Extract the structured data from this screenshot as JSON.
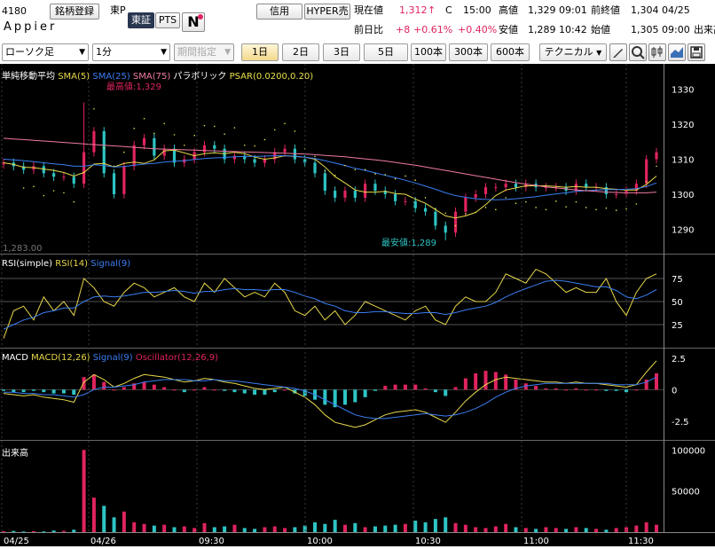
{
  "header": {
    "code": "4180",
    "company": "Appier",
    "register_btn": "銘柄登録",
    "market": "東P",
    "market_btn1": "東証",
    "market_btn2": "PTS",
    "credit_btn": "信用",
    "hyper_btn": "HYPER売",
    "current_label": "現在値",
    "current_value": "1,312",
    "current_arrow": "↑",
    "current_flag": "C",
    "current_time": "15:00",
    "high_label": "高値",
    "high_value": "1,329 09:01",
    "prev_close_label": "前終値",
    "prev_close_value": "1,304 04/25",
    "change_label": "前日比",
    "change_value": "+8",
    "change_pct": "+0.61%",
    "change_pct2": "+0.40%",
    "low_label": "安値",
    "low_value": "1,289 10:42",
    "open_label": "始値",
    "open_value": "1,305 09:00",
    "volume_label": "出来高"
  },
  "toolbar": {
    "chart_type": "ローソク足",
    "interval": "1分",
    "period": "期間指定",
    "ranges": [
      "1日",
      "2日",
      "3日",
      "5日",
      "100本",
      "300本",
      "600本"
    ],
    "active_range": "1日",
    "technical": "テクニカル"
  },
  "colors": {
    "up": "#e0245e",
    "down": "#2ec4c4",
    "sma5": "#e8d84a",
    "sma25": "#3a7ef2",
    "sma75": "#f07ba0",
    "psar": "#e6e04a",
    "signal": "#3a7ef2"
  },
  "panels": {
    "price": {
      "legend": [
        "単純移動平均",
        "SMA(5)",
        "SMA(25)",
        "SMA(75)",
        "パラボリック",
        "PSAR(0.0200,0.20)"
      ],
      "high_note": "最高値:1,329",
      "low_note": "最安値:1,289",
      "prev_close_note": "1,283.00"
    },
    "rsi": {
      "legend": [
        "RSI(simple)",
        "RSI(14)",
        "Signal(9)"
      ]
    },
    "macd": {
      "legend": [
        "MACD",
        "MACD(12,26)",
        "Signal(9)",
        "Oscillator(12,26,9)"
      ]
    },
    "volume": {
      "legend": [
        "出来高"
      ]
    }
  },
  "chart_data": [
    {
      "type": "candlestick",
      "title": "単純移動平均 / パラボリック",
      "ylim": [
        1283,
        1336
      ],
      "yticks": [
        1290,
        1300,
        1310,
        1320,
        1330
      ],
      "x_ticks": [
        "04/25",
        "04/26",
        "09:30",
        "10:00",
        "10:30",
        "11:00",
        "11:30"
      ],
      "series": [
        {
          "name": "Close",
          "values": [
            1309,
            1308,
            1307,
            1308,
            1306,
            1305,
            1305,
            1303,
            1312,
            1318,
            1306,
            1300,
            1308,
            1314,
            1316,
            1311,
            1313,
            1309,
            1310,
            1312,
            1314,
            1313,
            1310,
            1311,
            1310,
            1309,
            1310,
            1312,
            1313,
            1310,
            1309,
            1306,
            1301,
            1299,
            1301,
            1299,
            1303,
            1301,
            1300,
            1298,
            1298,
            1296,
            1295,
            1291,
            1289,
            1295,
            1299,
            1300,
            1302,
            1302,
            1303,
            1302,
            1303,
            1302,
            1302,
            1302,
            1301,
            1303,
            1302,
            1302,
            1300,
            1300,
            1301,
            1303,
            1310,
            1312
          ]
        },
        {
          "name": "SMA(5)",
          "values": [
            1309,
            1308.5,
            1307.7,
            1307.6,
            1307.2,
            1306.8,
            1306.2,
            1305.2,
            1306.2,
            1308.6,
            1308.8,
            1307.8,
            1308.8,
            1309.2,
            1308.8,
            1309.8,
            1312.4,
            1312.6,
            1311.8,
            1311,
            1311.6,
            1311.8,
            1311.6,
            1312,
            1311.6,
            1310.6,
            1310,
            1310.4,
            1311,
            1310.8,
            1310.6,
            1310,
            1307.8,
            1305,
            1303.2,
            1301.2,
            1300.6,
            1300.6,
            1300.8,
            1300.2,
            1300,
            1298.6,
            1297.4,
            1295.6,
            1293.8,
            1293.2,
            1293.8,
            1294.8,
            1297,
            1299.6,
            1301.2,
            1301.8,
            1302.4,
            1302.4,
            1302.4,
            1302.2,
            1302,
            1302.2,
            1302,
            1302,
            1301.6,
            1301.4,
            1301.2,
            1301.2,
            1302.8,
            1305.2
          ]
        },
        {
          "name": "SMA(25)",
          "values": [
            1310,
            1309.8,
            1309.6,
            1309.3,
            1309,
            1308.7,
            1308.4,
            1308,
            1308,
            1308.4,
            1308.2,
            1307.8,
            1307.9,
            1308.3,
            1308.6,
            1308.8,
            1309.2,
            1309.4,
            1309.6,
            1309.9,
            1310.2,
            1310.4,
            1310.5,
            1310.7,
            1310.8,
            1310.8,
            1310.9,
            1311,
            1311,
            1310.9,
            1310.6,
            1310.2,
            1309.6,
            1308.9,
            1308.2,
            1307.4,
            1306.8,
            1306.1,
            1305.4,
            1304.7,
            1304,
            1303.2,
            1302.3,
            1301.4,
            1300.4,
            1299.6,
            1299.1,
            1298.7,
            1298.5,
            1298.4,
            1298.5,
            1298.7,
            1299,
            1299.3,
            1299.7,
            1300.1,
            1300.4,
            1300.8,
            1301,
            1301.2,
            1301.3,
            1301.3,
            1301.4,
            1301.6,
            1302.2,
            1303.2
          ]
        },
        {
          "name": "SMA(75)",
          "values": [
            1316,
            1315.8,
            1315.6,
            1315.4,
            1315.2,
            1315,
            1314.8,
            1314.6,
            1314.4,
            1314.2,
            1314,
            1313.8,
            1313.6,
            1313.4,
            1313.2,
            1313,
            1312.9,
            1312.8,
            1312.7,
            1312.6,
            1312.5,
            1312.4,
            1312.3,
            1312.2,
            1312.1,
            1312,
            1311.9,
            1311.8,
            1311.7,
            1311.6,
            1311.5,
            1311.3,
            1311.1,
            1310.9,
            1310.7,
            1310.4,
            1310.1,
            1309.8,
            1309.5,
            1309.1,
            1308.7,
            1308.3,
            1307.8,
            1307.3,
            1306.8,
            1306.3,
            1305.8,
            1305.3,
            1304.8,
            1304.3,
            1303.8,
            1303.3,
            1302.9,
            1302.5,
            1302.1,
            1301.8,
            1301.5,
            1301.2,
            1301,
            1300.8,
            1300.6,
            1300.5,
            1300.4,
            1300.4,
            1300.4,
            1300.6
          ]
        }
      ]
    },
    {
      "type": "line",
      "title": "RSI(simple)",
      "ylim": [
        0,
        100
      ],
      "yticks": [
        25,
        50,
        75
      ],
      "series": [
        {
          "name": "RSI(14)",
          "values": [
            10,
            40,
            45,
            30,
            55,
            40,
            50,
            35,
            75,
            65,
            50,
            45,
            60,
            70,
            65,
            55,
            60,
            65,
            55,
            50,
            70,
            60,
            75,
            65,
            55,
            60,
            55,
            70,
            60,
            40,
            35,
            45,
            30,
            40,
            25,
            35,
            50,
            45,
            40,
            35,
            30,
            40,
            45,
            30,
            25,
            45,
            55,
            50,
            50,
            60,
            80,
            75,
            70,
            85,
            80,
            70,
            60,
            65,
            60,
            60,
            75,
            50,
            35,
            60,
            75,
            80
          ]
        },
        {
          "name": "Signal(9)",
          "values": [
            20,
            25,
            30,
            33,
            38,
            40,
            43,
            43,
            50,
            55,
            56,
            55,
            56,
            58,
            60,
            60,
            61,
            62,
            61,
            59,
            61,
            61,
            63,
            64,
            63,
            63,
            62,
            63,
            63,
            60,
            56,
            53,
            48,
            45,
            40,
            38,
            38,
            39,
            39,
            38,
            37,
            37,
            38,
            38,
            36,
            38,
            41,
            43,
            45,
            49,
            55,
            60,
            64,
            68,
            72,
            73,
            72,
            70,
            68,
            66,
            66,
            62,
            55,
            53,
            57,
            63
          ]
        }
      ]
    },
    {
      "type": "bar",
      "title": "MACD",
      "ylim": [
        -4,
        3.2
      ],
      "yticks": [
        -2.5,
        0,
        2.5
      ],
      "series": [
        {
          "name": "MACD(12,26)",
          "values": [
            -0.3,
            -0.4,
            -0.5,
            -0.4,
            -0.6,
            -0.7,
            -0.8,
            -1.0,
            0.6,
            1.2,
            0.8,
            0.2,
            0.5,
            0.9,
            1.2,
            1.1,
            1.0,
            0.8,
            0.6,
            0.7,
            0.9,
            0.8,
            0.6,
            0.5,
            0.3,
            0.1,
            0.0,
            0.1,
            0.2,
            -0.2,
            -0.6,
            -1.2,
            -2.0,
            -2.6,
            -2.8,
            -3.0,
            -2.8,
            -2.4,
            -2.0,
            -1.8,
            -1.7,
            -1.6,
            -1.8,
            -2.2,
            -2.6,
            -1.8,
            -0.9,
            -0.2,
            0.4,
            0.8,
            1.0,
            0.9,
            0.8,
            0.7,
            0.6,
            0.6,
            0.5,
            0.6,
            0.5,
            0.5,
            0.4,
            0.3,
            0.2,
            0.4,
            1.4,
            2.3
          ]
        },
        {
          "name": "Signal(9)",
          "values": [
            -0.2,
            -0.2,
            -0.3,
            -0.3,
            -0.4,
            -0.4,
            -0.5,
            -0.6,
            -0.4,
            0.0,
            0.2,
            0.2,
            0.3,
            0.4,
            0.6,
            0.7,
            0.8,
            0.8,
            0.8,
            0.7,
            0.7,
            0.8,
            0.7,
            0.7,
            0.6,
            0.5,
            0.4,
            0.3,
            0.2,
            0.1,
            -0.1,
            -0.4,
            -0.8,
            -1.2,
            -1.6,
            -2.0,
            -2.2,
            -2.3,
            -2.3,
            -2.2,
            -2.1,
            -2.0,
            -1.9,
            -2.0,
            -2.1,
            -2.0,
            -1.8,
            -1.5,
            -1.1,
            -0.6,
            -0.2,
            0.1,
            0.3,
            0.4,
            0.5,
            0.5,
            0.5,
            0.5,
            0.5,
            0.5,
            0.5,
            0.4,
            0.4,
            0.4,
            0.6,
            1.0
          ]
        },
        {
          "name": "Oscillator(12,26,9)",
          "values": [
            -0.1,
            -0.2,
            -0.2,
            -0.1,
            -0.2,
            -0.3,
            -0.3,
            -0.4,
            1.0,
            1.2,
            0.6,
            0.0,
            0.2,
            0.5,
            0.6,
            0.4,
            0.2,
            0.0,
            -0.2,
            0.0,
            0.2,
            0.0,
            -0.1,
            -0.2,
            -0.3,
            -0.4,
            -0.4,
            -0.2,
            0.0,
            -0.3,
            -0.5,
            -0.8,
            -1.2,
            -1.4,
            -1.2,
            -1.0,
            -0.6,
            -0.1,
            0.3,
            0.4,
            0.4,
            0.4,
            0.1,
            -0.2,
            -0.5,
            0.2,
            0.9,
            1.3,
            1.5,
            1.4,
            1.2,
            0.8,
            0.5,
            0.3,
            0.1,
            0.1,
            0.0,
            0.1,
            0.0,
            0.0,
            -0.1,
            -0.1,
            -0.2,
            0.0,
            0.8,
            1.3
          ]
        }
      ]
    },
    {
      "type": "bar",
      "title": "出来高",
      "ylim": [
        0,
        110000
      ],
      "yticks": [
        50000,
        100000
      ],
      "series": [
        {
          "name": "出来高",
          "values": [
            1000,
            1500,
            800,
            1200,
            900,
            2000,
            1500,
            3000,
            100000,
            42000,
            32000,
            18000,
            25000,
            12000,
            10000,
            8000,
            9000,
            6000,
            7000,
            5000,
            11000,
            6000,
            7000,
            9000,
            5000,
            4000,
            6000,
            7000,
            5000,
            6000,
            8000,
            12000,
            10000,
            15000,
            9000,
            11000,
            6000,
            7000,
            8000,
            9000,
            10000,
            14000,
            12000,
            16000,
            18000,
            11000,
            9000,
            6000,
            5000,
            7000,
            10000,
            6000,
            5000,
            4000,
            6000,
            5000,
            4000,
            6000,
            5000,
            4000,
            3000,
            5000,
            6000,
            8000,
            12000,
            9000
          ]
        }
      ]
    }
  ]
}
